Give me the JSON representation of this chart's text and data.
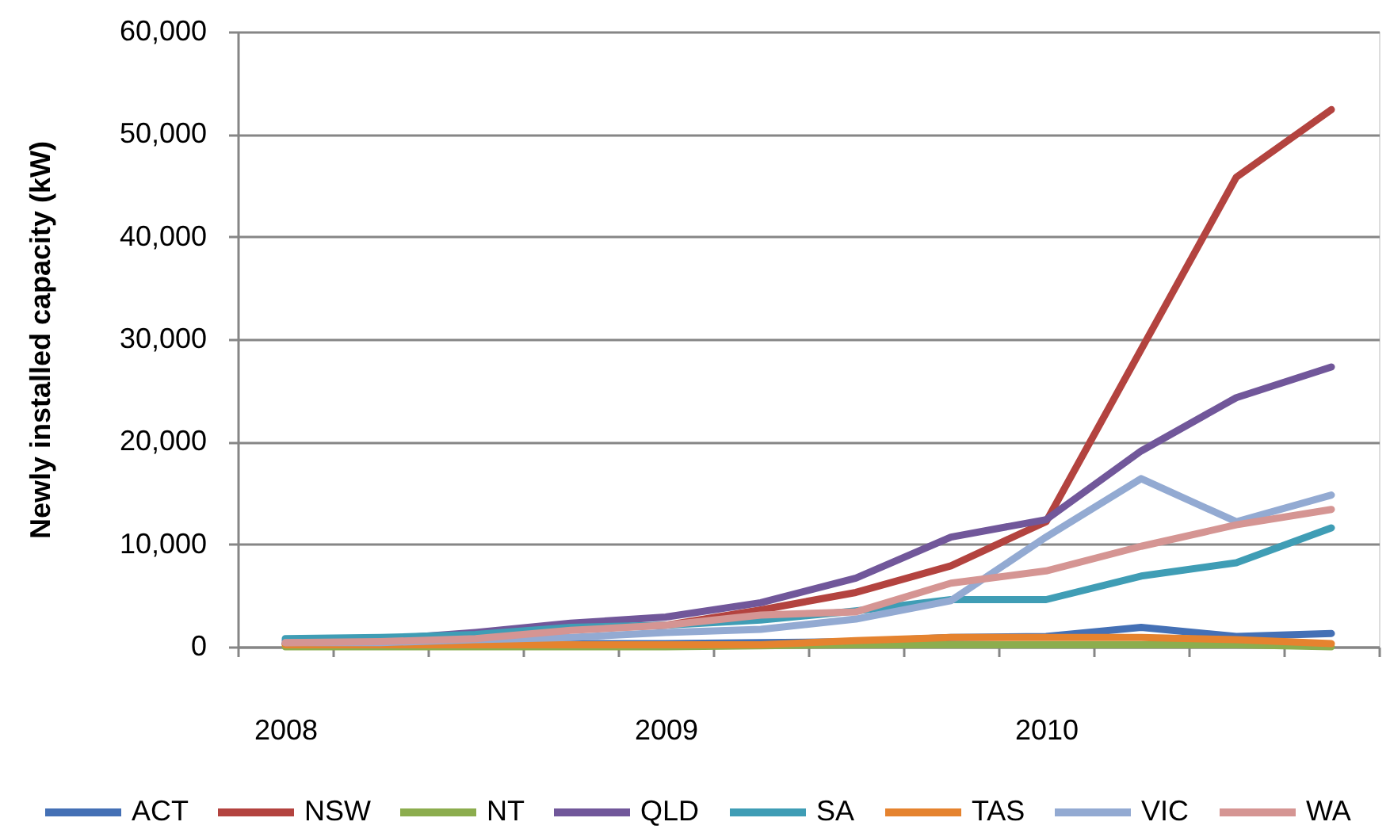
{
  "chart_data": {
    "type": "line",
    "ylabel": "Newly installed capacity (kW)",
    "categories": [
      "2008",
      null,
      null,
      null,
      "2009",
      null,
      null,
      null,
      "2010",
      null,
      null,
      null
    ],
    "ylim": [
      0,
      60000
    ],
    "yticks": [
      0,
      {
        "value": 10000,
        "label": "10,000"
      },
      {
        "value": 20000,
        "label": "20,000"
      },
      {
        "value": 30000,
        "label": "30,000"
      },
      {
        "value": 40000,
        "label": "40,000"
      },
      {
        "value": 50000,
        "label": "50,000"
      },
      {
        "value": 60000,
        "label": "60,000"
      }
    ],
    "grid": "y",
    "legend": "bottom",
    "series": [
      {
        "name": "ACT",
        "color": "#4470b5",
        "values": [
          300,
          300,
          300,
          300,
          300,
          400,
          500,
          900,
          1000,
          1900,
          1000,
          1300
        ]
      },
      {
        "name": "NSW",
        "color": "#b3433f",
        "values": [
          300,
          700,
          1000,
          1700,
          2100,
          3600,
          5300,
          7900,
          12200,
          29000,
          45800,
          52400
        ]
      },
      {
        "name": "NT",
        "color": "#8cad4e",
        "values": [
          0,
          0,
          0,
          0,
          0,
          100,
          200,
          200,
          200,
          200,
          200,
          0
        ]
      },
      {
        "name": "QLD",
        "color": "#71579a",
        "values": [
          600,
          700,
          1400,
          2300,
          2900,
          4300,
          6700,
          10700,
          12400,
          19100,
          24300,
          27300
        ]
      },
      {
        "name": "SA",
        "color": "#3f9db5",
        "values": [
          800,
          900,
          1200,
          1900,
          2100,
          2600,
          3500,
          4600,
          4600,
          6900,
          8200,
          11600
        ]
      },
      {
        "name": "TAS",
        "color": "#e5832f",
        "values": [
          200,
          200,
          200,
          200,
          200,
          200,
          600,
          900,
          900,
          900,
          700,
          300
        ]
      },
      {
        "name": "VIC",
        "color": "#93aad2",
        "values": [
          400,
          400,
          700,
          900,
          1400,
          1700,
          2700,
          4500,
          10700,
          16400,
          12200,
          14800
        ]
      },
      {
        "name": "WA",
        "color": "#d59593",
        "values": [
          400,
          500,
          800,
          1600,
          2100,
          3100,
          3400,
          6200,
          7400,
          9800,
          11900,
          13400
        ]
      }
    ]
  }
}
